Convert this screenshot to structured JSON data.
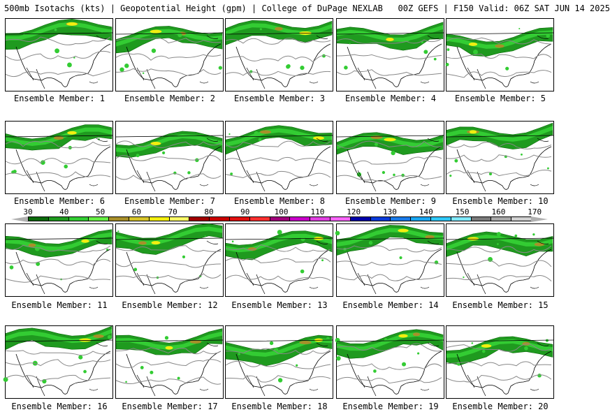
{
  "header": {
    "title": "500mb Isotachs (kts) | Geopotential Height (gpm) | College of DuPage NEXLAB   00Z GEFS | F150 Valid: 06Z SAT JUN 14 2025"
  },
  "panels": [
    {
      "label": "Ensemble Member: 1"
    },
    {
      "label": "Ensemble Member: 2"
    },
    {
      "label": "Ensemble Member: 3"
    },
    {
      "label": "Ensemble Member: 4"
    },
    {
      "label": "Ensemble Member: 5"
    },
    {
      "label": "Ensemble Member: 6"
    },
    {
      "label": "Ensemble Member: 7"
    },
    {
      "label": "Ensemble Member: 8"
    },
    {
      "label": "Ensemble Member: 9"
    },
    {
      "label": "Ensemble Member: 10"
    },
    {
      "label": "Ensemble Member: 11"
    },
    {
      "label": "Ensemble Member: 12"
    },
    {
      "label": "Ensemble Member: 13"
    },
    {
      "label": "Ensemble Member: 14"
    },
    {
      "label": "Ensemble Member: 15"
    },
    {
      "label": "Ensemble Member: 16"
    },
    {
      "label": "Ensemble Member: 17"
    },
    {
      "label": "Ensemble Member: 18"
    },
    {
      "label": "Ensemble Member: 19"
    },
    {
      "label": "Ensemble Member: 20"
    }
  ],
  "colorbar": {
    "ticks": [
      "30",
      "40",
      "50",
      "60",
      "70",
      "80",
      "90",
      "100",
      "110",
      "120",
      "130",
      "140",
      "150",
      "160",
      "170"
    ],
    "colors": [
      "#0a6a0a",
      "#1f9a1f",
      "#33cc33",
      "#66ee44",
      "#a88f2a",
      "#d6c42a",
      "#f2ee10",
      "#ffff66",
      "#a00000",
      "#c80000",
      "#e01010",
      "#ff3030",
      "#a0007a",
      "#c800c8",
      "#e040e0",
      "#ff66ff",
      "#0000a8",
      "#0a3ad8",
      "#1a7ae8",
      "#1aa6f0",
      "#30c8f8",
      "#80e8ff",
      "#7a7a7a",
      "#a8a8a8",
      "#d0d0d0"
    ]
  }
}
